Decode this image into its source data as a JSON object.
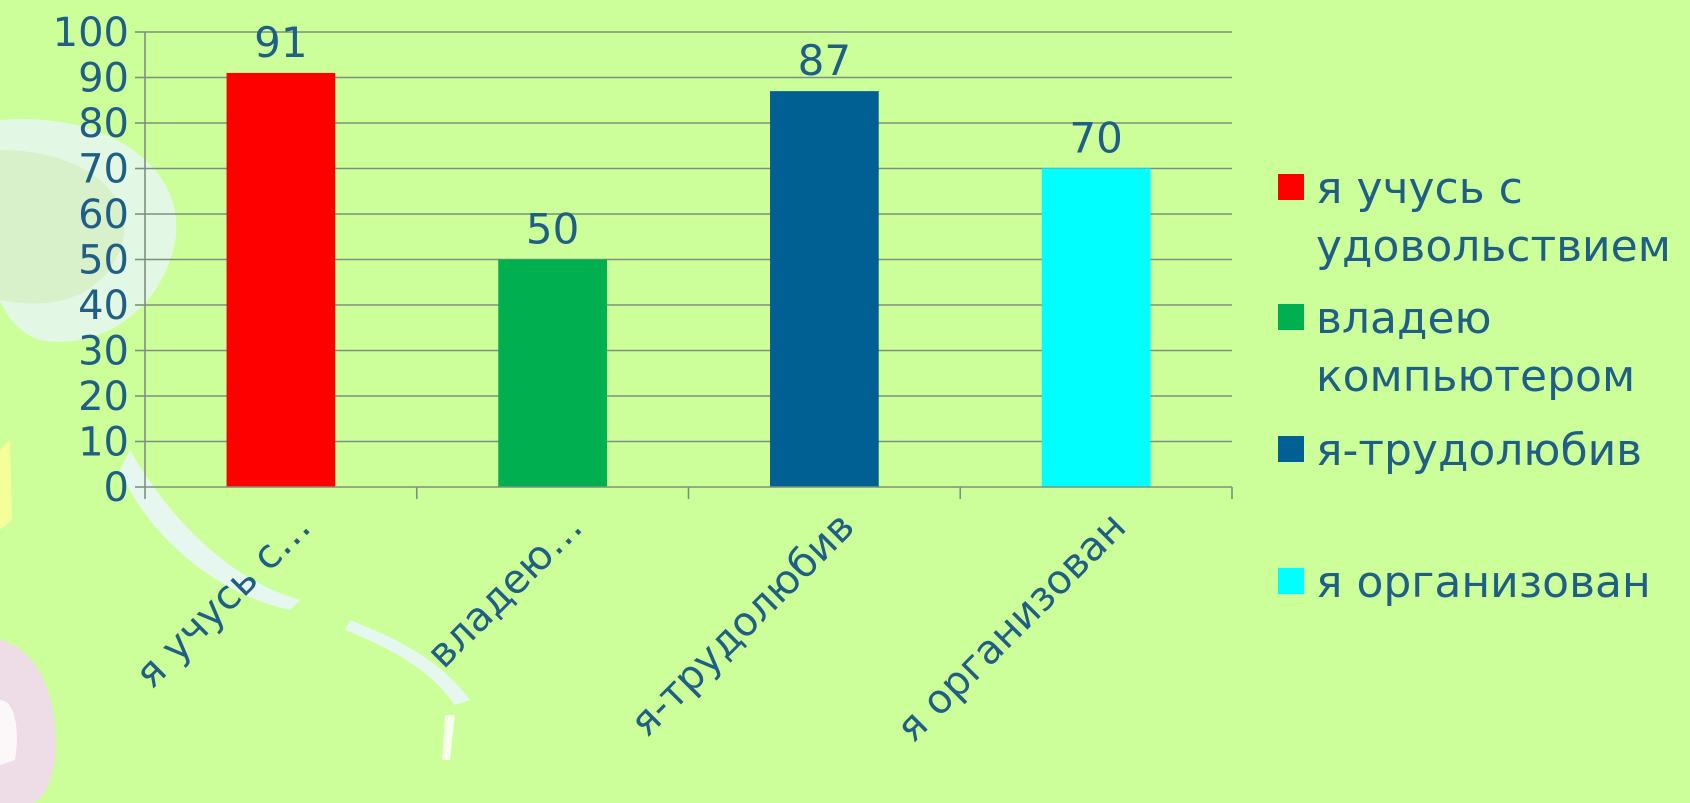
{
  "chart_data": {
    "type": "bar",
    "categories": [
      "я учусь с…",
      "владею…",
      "я-трудолюбив",
      "я организован"
    ],
    "values": [
      91,
      50,
      87,
      70
    ],
    "colors": [
      "#ff0000",
      "#00b050",
      "#006093",
      "#00ffff"
    ],
    "ylim": [
      0,
      100
    ],
    "yticks": [
      0,
      10,
      20,
      30,
      40,
      50,
      60,
      70,
      80,
      90,
      100
    ],
    "grid": true,
    "legend_position": "right",
    "legend": [
      "я учусь с удовольствием",
      " владею компьютером",
      "я-трудолюбив",
      "я организован"
    ],
    "title": "",
    "xlabel": "",
    "ylabel": ""
  }
}
